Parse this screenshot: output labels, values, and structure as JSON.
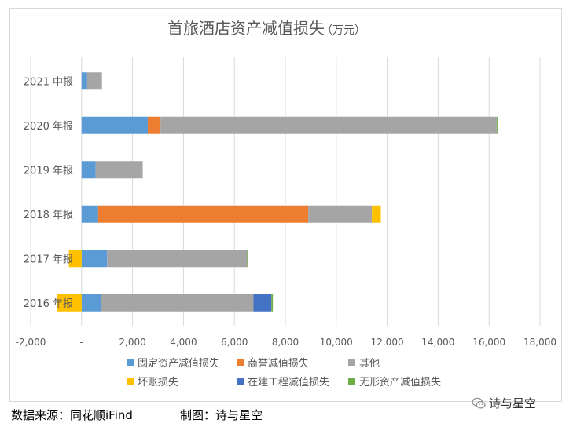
{
  "chart_data": {
    "type": "bar",
    "orientation": "horizontal",
    "stacked": true,
    "title": "首旅酒店资产减值损失",
    "subtitle": "（万元）",
    "categories": [
      "2016 年报",
      "2017 年报",
      "2018 年报",
      "2019 年报",
      "2020 年报",
      "2021 中报"
    ],
    "series": [
      {
        "name": "固定资产减值损失",
        "color": "#5b9bd5",
        "values": [
          750,
          1000,
          650,
          550,
          2600,
          220
        ]
      },
      {
        "name": "商誉减值损失",
        "color": "#ed7d31",
        "values": [
          0,
          0,
          8250,
          0,
          500,
          0
        ]
      },
      {
        "name": "其他",
        "color": "#a5a5a5",
        "values": [
          6000,
          5500,
          2500,
          1850,
          13200,
          580
        ]
      },
      {
        "name": "坏账损失",
        "color": "#ffc000",
        "values": [
          -950,
          -500,
          350,
          0,
          0,
          0
        ]
      },
      {
        "name": "在建工程减值损失",
        "color": "#4472c4",
        "values": [
          700,
          0,
          0,
          0,
          0,
          0
        ]
      },
      {
        "name": "无形资产减值损失",
        "color": "#70ad47",
        "values": [
          60,
          40,
          0,
          0,
          30,
          0
        ]
      }
    ],
    "xlim": [
      -2000,
      18000
    ],
    "xticks": [
      -2000,
      0,
      2000,
      4000,
      6000,
      8000,
      10000,
      12000,
      14000,
      16000,
      18000
    ],
    "xtick_labels": [
      "-2,000",
      "-",
      "2,000",
      "4,000",
      "6,000",
      "8,000",
      "10,000",
      "12,000",
      "14,000",
      "16,000",
      "18,000"
    ],
    "grid": true,
    "legend_position": "bottom"
  },
  "footer": {
    "source": "数据来源：同花顺iFind",
    "made_by": "制图：诗与星空"
  },
  "watermark": {
    "text": "诗与星空",
    "icon": "wechat-icon"
  }
}
